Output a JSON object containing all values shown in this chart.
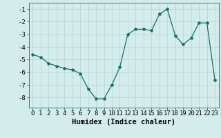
{
  "x": [
    0,
    1,
    2,
    3,
    4,
    5,
    6,
    7,
    8,
    9,
    10,
    11,
    12,
    13,
    14,
    15,
    16,
    17,
    18,
    19,
    20,
    21,
    22,
    23
  ],
  "y": [
    -4.6,
    -4.8,
    -5.3,
    -5.5,
    -5.7,
    -5.8,
    -6.1,
    -7.3,
    -8.1,
    -8.1,
    -7.0,
    -5.6,
    -3.0,
    -2.6,
    -2.6,
    -2.7,
    -1.4,
    -1.0,
    -3.1,
    -3.8,
    -3.3,
    -2.1,
    -2.1,
    -6.6
  ],
  "line_color": "#1a6b6b",
  "marker": "*",
  "marker_size": 3,
  "bg_color": "#d4ecec",
  "grid_color": "#b8d8d8",
  "xlabel": "Humidex (Indice chaleur)",
  "ylim": [
    -8.8,
    -0.5
  ],
  "xlim": [
    -0.5,
    23.5
  ],
  "yticks": [
    -8,
    -7,
    -6,
    -5,
    -4,
    -3,
    -2,
    -1
  ],
  "xticks": [
    0,
    1,
    2,
    3,
    4,
    5,
    6,
    7,
    8,
    9,
    10,
    11,
    12,
    13,
    14,
    15,
    16,
    17,
    18,
    19,
    20,
    21,
    22,
    23
  ],
  "tick_fontsize": 6.5,
  "label_fontsize": 7.5
}
